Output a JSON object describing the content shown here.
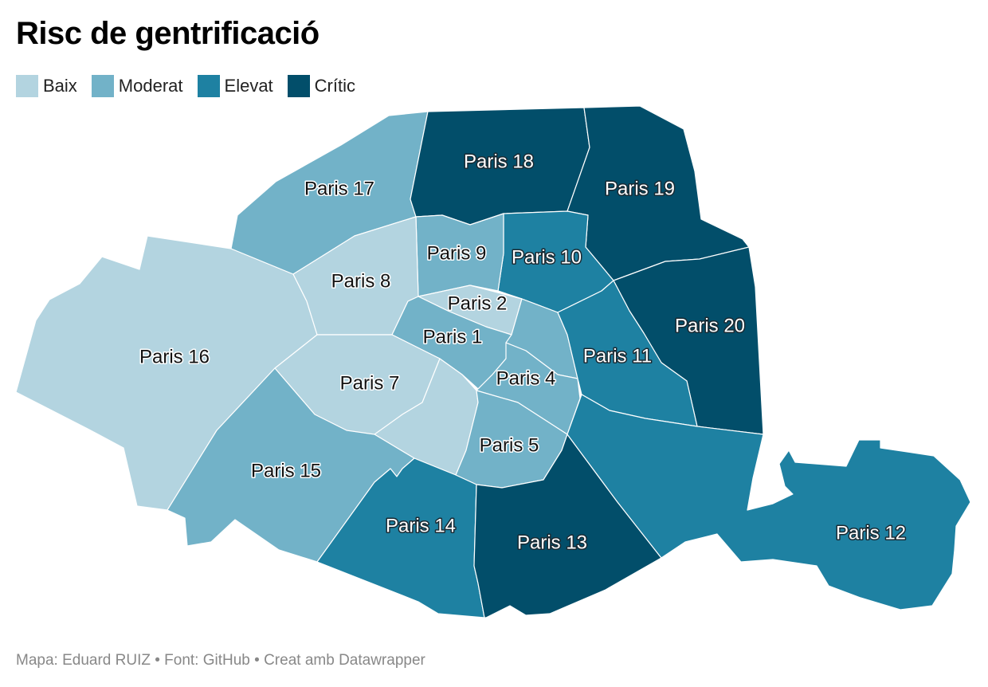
{
  "title": "Risc de gentrificació",
  "legend": [
    {
      "label": "Baix",
      "color": "#b3d4e0"
    },
    {
      "label": "Moderat",
      "color": "#72b2c8"
    },
    {
      "label": "Elevat",
      "color": "#1e81a2"
    },
    {
      "label": "Crític",
      "color": "#024e6a"
    }
  ],
  "districts": [
    {
      "name": "Paris 1",
      "level": "Moderat"
    },
    {
      "name": "Paris 2",
      "level": "Baix"
    },
    {
      "name": "Paris 4",
      "level": "Moderat"
    },
    {
      "name": "Paris 5",
      "level": "Moderat"
    },
    {
      "name": "Paris 7",
      "level": "Baix"
    },
    {
      "name": "Paris 8",
      "level": "Baix"
    },
    {
      "name": "Paris 9",
      "level": "Moderat"
    },
    {
      "name": "Paris 10",
      "level": "Elevat"
    },
    {
      "name": "Paris 11",
      "level": "Elevat"
    },
    {
      "name": "Paris 12",
      "level": "Elevat"
    },
    {
      "name": "Paris 13",
      "level": "Crític"
    },
    {
      "name": "Paris 14",
      "level": "Elevat"
    },
    {
      "name": "Paris 15",
      "level": "Moderat"
    },
    {
      "name": "Paris 16",
      "level": "Baix"
    },
    {
      "name": "Paris 17",
      "level": "Moderat"
    },
    {
      "name": "Paris 18",
      "level": "Crític"
    },
    {
      "name": "Paris 19",
      "level": "Crític"
    },
    {
      "name": "Paris 20",
      "level": "Crític"
    }
  ],
  "footer": "Mapa: Eduard RUIZ • Font: GitHub • Creat amb Datawrapper"
}
